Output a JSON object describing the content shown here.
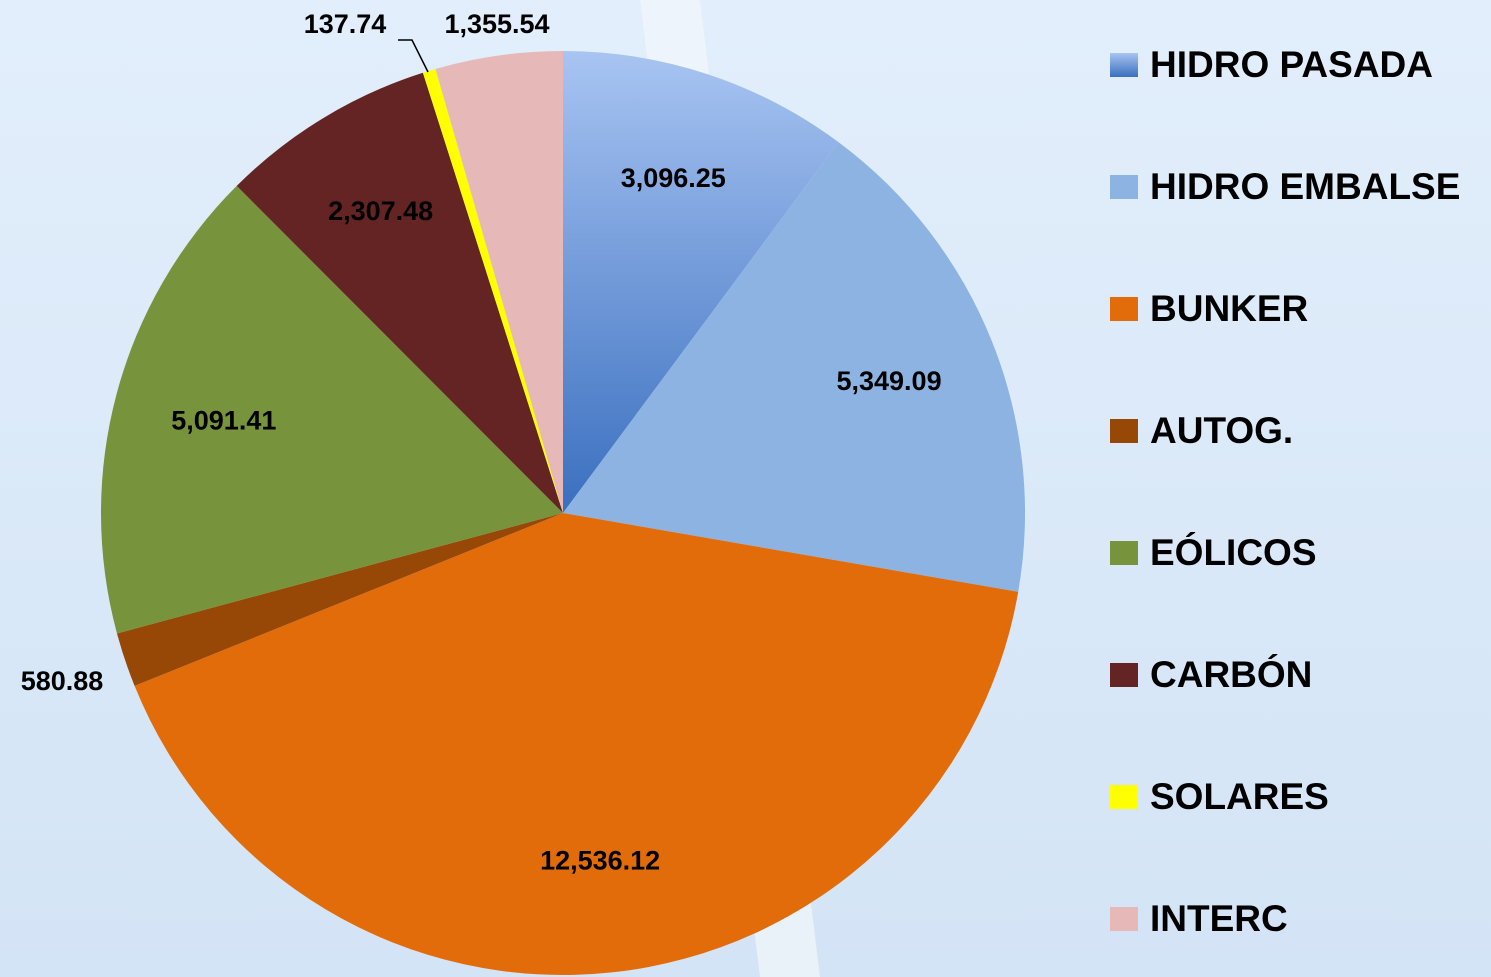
{
  "chart_data": {
    "type": "pie",
    "categories": [
      "HIDRO PASADA",
      "HIDRO EMBALSE",
      "BUNKER",
      "AUTOG.",
      "EÓLICOS",
      "CARBÓN",
      "SOLARES",
      "INTERC"
    ],
    "values": [
      3096.25,
      5349.09,
      12536.12,
      580.88,
      5091.41,
      2307.48,
      137.74,
      1355.54
    ],
    "value_labels": [
      "3,096.25",
      "5,349.09",
      "12,536.12",
      "580.88",
      "5,091.41",
      "2,307.48",
      "137.74",
      "1,355.54"
    ],
    "colors": [
      "#5f8fd8",
      "#8db3e2",
      "#e36c0a",
      "#974806",
      "#77933c",
      "#632423",
      "#ffff00",
      "#e6b9b8"
    ],
    "legend": "right"
  }
}
